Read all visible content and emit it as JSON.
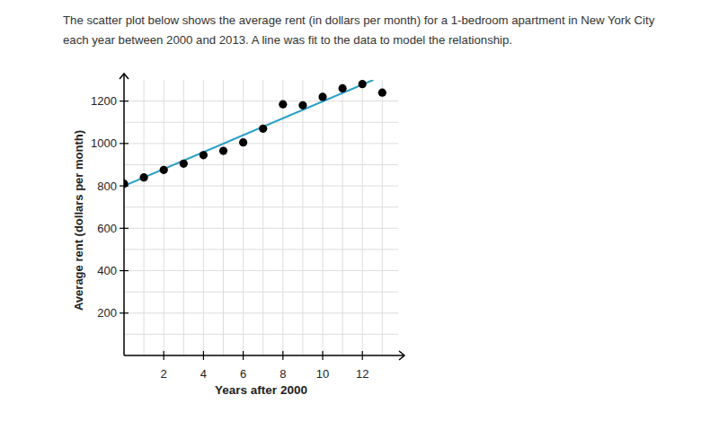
{
  "chart_data": {
    "type": "scatter",
    "title": "The scatter plot below shows the average rent (in dollars per month) for a 1-bedroom apartment in New York City each year between 2000 and 2013. A line was fit to the data to model the relationship.",
    "x_label": "Years after 2000",
    "y_label": "Average rent (dollars per month)",
    "xlim": [
      0,
      13.8
    ],
    "xticks": [
      2,
      4,
      6,
      8,
      10,
      12
    ],
    "ylim": [
      0,
      1300
    ],
    "yticks": [
      200,
      400,
      600,
      800,
      1000,
      1200
    ],
    "grid": true,
    "series": [
      {
        "type": "line",
        "color": "#2a9fc6",
        "x": [
          0,
          12.55
        ],
        "values": [
          800,
          1300
        ]
      },
      {
        "type": "scatter",
        "color": "#000000",
        "marker": "circle",
        "x": [
          0,
          1,
          2,
          3,
          4,
          5,
          6,
          7,
          8,
          9,
          10,
          11,
          12,
          13
        ],
        "values": [
          810,
          840,
          875,
          905,
          945,
          965,
          1005,
          1070,
          1185,
          1180,
          1220,
          1260,
          1280,
          1240
        ]
      }
    ]
  }
}
